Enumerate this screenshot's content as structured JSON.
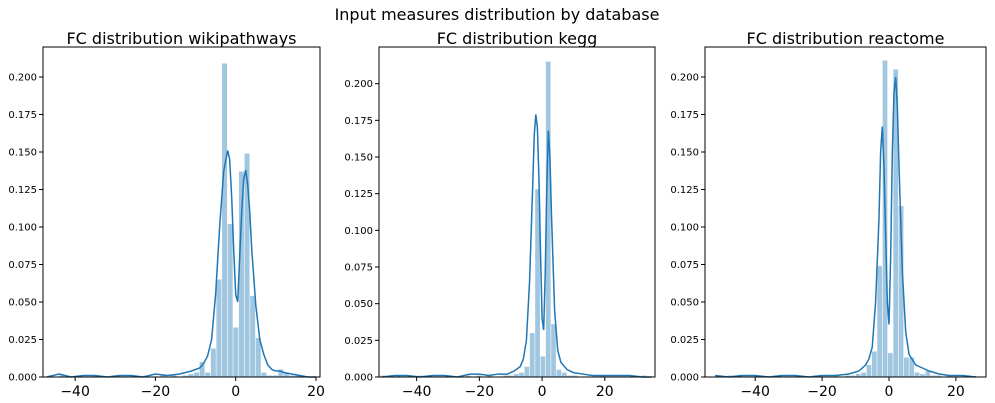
{
  "figure": {
    "suptitle": "Input measures distribution by database"
  },
  "colors": {
    "series": "#1f77b4",
    "background": "#ffffff",
    "axes": "#000000"
  },
  "chart_data": [
    {
      "type": "bar",
      "title": "FC distribution wikipathways",
      "xlabel": "",
      "ylabel": "",
      "xlim": [
        -48,
        21
      ],
      "ylim": [
        0,
        0.22
      ],
      "xticks": [
        -40,
        -20,
        0,
        20
      ],
      "xtick_labels": [
        "−40",
        "−20",
        "0",
        "20"
      ],
      "yticks": [
        0,
        0.025,
        0.05,
        0.075,
        0.1,
        0.125,
        0.15,
        0.175,
        0.2
      ],
      "ytick_labels": [
        "0.000",
        "0.025",
        "0.050",
        "0.075",
        "0.100",
        "0.125",
        "0.150",
        "0.175",
        "0.200"
      ],
      "histogram": {
        "bin_edges": [
          -46.8,
          -45.4,
          -44.0,
          -42.6,
          -41.2,
          -39.8,
          -38.4,
          -37.0,
          -35.6,
          -34.2,
          -32.8,
          -31.4,
          -30.0,
          -28.6,
          -27.2,
          -25.8,
          -24.4,
          -23.0,
          -21.6,
          -20.2,
          -18.8,
          -17.4,
          -16.0,
          -14.6,
          -13.2,
          -11.8,
          -10.4,
          -9.0,
          -7.6,
          -6.2,
          -4.8,
          -3.4,
          -2.0,
          -0.6,
          0.8,
          2.2,
          3.6,
          5.0,
          6.4,
          7.8,
          9.2,
          10.6,
          12.0,
          13.4,
          14.8,
          16.2,
          17.6,
          19.0
        ],
        "density": [
          0.001,
          0.0,
          0.001,
          0.0,
          0.0,
          0.001,
          0.0,
          0.0,
          0.001,
          0.0,
          0.0,
          0.0,
          0.001,
          0.0,
          0.0,
          0.001,
          0.0,
          0.001,
          0.0,
          0.0,
          0.001,
          0.0,
          0.001,
          0.0,
          0.001,
          0.002,
          0.003,
          0.01,
          0.003,
          0.019,
          0.065,
          0.209,
          0.102,
          0.033,
          0.137,
          0.149,
          0.054,
          0.026,
          0.003,
          0.001,
          0.001,
          0.005,
          0.003,
          0.001,
          0.001,
          0.0,
          0.0
        ]
      },
      "kde": {
        "x": [
          -47,
          -44,
          -41,
          -38,
          -35,
          -32,
          -29,
          -26,
          -23,
          -20,
          -17,
          -14,
          -11,
          -9,
          -8,
          -7,
          -6,
          -5,
          -4,
          -3,
          -2,
          -1.5,
          -1,
          -0.5,
          0,
          0.5,
          1,
          1.5,
          2,
          2.5,
          3,
          3.5,
          4,
          5,
          6,
          7,
          8,
          9,
          10,
          11,
          12,
          14,
          16,
          18,
          20
        ],
        "y": [
          0.0,
          0.002,
          0.0,
          0.001,
          0.001,
          0.0,
          0.001,
          0.001,
          0.0,
          0.002,
          0.001,
          0.002,
          0.004,
          0.006,
          0.009,
          0.014,
          0.025,
          0.055,
          0.1,
          0.137,
          0.151,
          0.145,
          0.12,
          0.085,
          0.055,
          0.05,
          0.08,
          0.11,
          0.132,
          0.138,
          0.128,
          0.11,
          0.085,
          0.048,
          0.025,
          0.015,
          0.008,
          0.005,
          0.004,
          0.004,
          0.003,
          0.002,
          0.001,
          0.0,
          0.0
        ]
      }
    },
    {
      "type": "bar",
      "title": "FC distribution kegg",
      "xlabel": "",
      "ylabel": "",
      "xlim": [
        -52,
        36
      ],
      "ylim": [
        0,
        0.225
      ],
      "xticks": [
        -40,
        -20,
        0,
        20
      ],
      "xtick_labels": [
        "−40",
        "−20",
        "0",
        "20"
      ],
      "yticks": [
        0,
        0.025,
        0.05,
        0.075,
        0.1,
        0.125,
        0.15,
        0.175,
        0.2
      ],
      "ytick_labels": [
        "0.000",
        "0.025",
        "0.050",
        "0.075",
        "0.100",
        "0.125",
        "0.150",
        "0.175",
        "0.200"
      ],
      "histogram": {
        "bin_edges": [
          -51.5,
          -49.8,
          -48.1,
          -46.4,
          -44.7,
          -43.0,
          -41.3,
          -39.6,
          -37.9,
          -36.2,
          -34.5,
          -32.8,
          -31.1,
          -29.4,
          -27.7,
          -26.0,
          -24.3,
          -22.6,
          -20.9,
          -19.2,
          -17.5,
          -15.8,
          -14.1,
          -12.4,
          -10.7,
          -9.0,
          -7.3,
          -5.6,
          -3.9,
          -2.2,
          -0.5,
          1.2,
          2.9,
          4.6,
          6.3,
          8.0,
          9.7,
          11.4,
          13.1,
          14.8,
          16.5,
          18.2,
          19.9,
          21.6,
          23.3,
          25.0,
          26.7,
          28.4,
          30.1,
          31.8,
          33.5
        ],
        "density": [
          0.001,
          0.0,
          0.0,
          0.001,
          0.0,
          0.0,
          0.0,
          0.001,
          0.0,
          0.0,
          0.0,
          0.0,
          0.001,
          0.0,
          0.0,
          0.0,
          0.001,
          0.0,
          0.001,
          0.0,
          0.001,
          0.0,
          0.0,
          0.001,
          0.001,
          0.002,
          0.003,
          0.007,
          0.03,
          0.128,
          0.014,
          0.215,
          0.036,
          0.005,
          0.003,
          0.001,
          0.001,
          0.0,
          0.0,
          0.0,
          0.0,
          0.001,
          0.0,
          0.0,
          0.0,
          0.0,
          0.0,
          0.0,
          0.0,
          0.001
        ]
      },
      "kde": {
        "x": [
          -51,
          -47,
          -43,
          -39,
          -35,
          -31,
          -27,
          -23,
          -20,
          -17,
          -14,
          -11,
          -9,
          -7,
          -6,
          -5,
          -4,
          -3,
          -2.5,
          -2,
          -1.5,
          -1,
          -0.5,
          0,
          0.5,
          1,
          1.5,
          2,
          2.5,
          3,
          4,
          5,
          6,
          8,
          10,
          13,
          16,
          20,
          24,
          28,
          32,
          35
        ],
        "y": [
          0.0,
          0.001,
          0.001,
          0.0,
          0.001,
          0.001,
          0.0,
          0.002,
          0.002,
          0.001,
          0.002,
          0.002,
          0.004,
          0.007,
          0.012,
          0.025,
          0.065,
          0.13,
          0.165,
          0.179,
          0.17,
          0.135,
          0.085,
          0.04,
          0.032,
          0.07,
          0.13,
          0.168,
          0.15,
          0.11,
          0.045,
          0.018,
          0.01,
          0.005,
          0.003,
          0.002,
          0.001,
          0.001,
          0.001,
          0.001,
          0.0,
          0.0
        ]
      }
    },
    {
      "type": "bar",
      "title": "FC distribution reactome",
      "xlabel": "",
      "ylabel": "",
      "xlim": [
        -55,
        29
      ],
      "ylim": [
        0,
        0.22
      ],
      "xticks": [
        -40,
        -20,
        0,
        20
      ],
      "xtick_labels": [
        "−40",
        "−20",
        "0",
        "20"
      ],
      "yticks": [
        0,
        0.025,
        0.05,
        0.075,
        0.1,
        0.125,
        0.15,
        0.175,
        0.2
      ],
      "ytick_labels": [
        "0.000",
        "0.025",
        "0.050",
        "0.075",
        "0.100",
        "0.125",
        "0.150",
        "0.175",
        "0.200"
      ],
      "histogram": {
        "bin_edges": [
          -51.5,
          -49.9,
          -48.3,
          -46.7,
          -45.1,
          -43.5,
          -41.9,
          -40.3,
          -38.7,
          -37.1,
          -35.5,
          -33.9,
          -32.3,
          -30.7,
          -29.1,
          -27.5,
          -25.9,
          -24.3,
          -22.7,
          -21.1,
          -19.5,
          -17.9,
          -16.3,
          -14.7,
          -13.1,
          -11.5,
          -9.9,
          -8.3,
          -6.7,
          -5.1,
          -3.5,
          -1.9,
          -0.3,
          1.3,
          2.9,
          4.5,
          6.1,
          7.7,
          9.3,
          10.9,
          12.5,
          14.1,
          15.7,
          17.3,
          18.9,
          20.5,
          22.1,
          23.7,
          25.3
        ],
        "density": [
          0.001,
          0.0,
          0.001,
          0.0,
          0.001,
          0.0,
          0.0,
          0.001,
          0.0,
          0.0,
          0.0,
          0.001,
          0.0,
          0.0,
          0.0,
          0.001,
          0.0,
          0.0,
          0.001,
          0.0,
          0.0,
          0.0,
          0.001,
          0.0,
          0.001,
          0.001,
          0.002,
          0.003,
          0.008,
          0.017,
          0.074,
          0.211,
          0.016,
          0.205,
          0.114,
          0.013,
          0.013,
          0.003,
          0.002,
          0.004,
          0.001,
          0.001,
          0.0,
          0.001,
          0.0,
          0.0,
          0.001,
          0.0
        ]
      },
      "kde": {
        "x": [
          -52,
          -48,
          -44,
          -40,
          -36,
          -32,
          -28,
          -24,
          -20,
          -16,
          -12,
          -9,
          -7,
          -6,
          -5,
          -4,
          -3,
          -2.5,
          -2,
          -1.5,
          -1,
          -0.5,
          0,
          0.5,
          1,
          1.5,
          2,
          2.5,
          3,
          4,
          5,
          6,
          8,
          10,
          12,
          15,
          18,
          22,
          26
        ],
        "y": [
          0.001,
          0.0,
          0.001,
          0.001,
          0.0,
          0.001,
          0.001,
          0.0,
          0.001,
          0.001,
          0.002,
          0.004,
          0.008,
          0.012,
          0.02,
          0.05,
          0.105,
          0.15,
          0.167,
          0.14,
          0.095,
          0.05,
          0.035,
          0.08,
          0.15,
          0.19,
          0.2,
          0.18,
          0.14,
          0.07,
          0.03,
          0.015,
          0.008,
          0.006,
          0.004,
          0.002,
          0.001,
          0.001,
          0.0
        ]
      }
    }
  ]
}
